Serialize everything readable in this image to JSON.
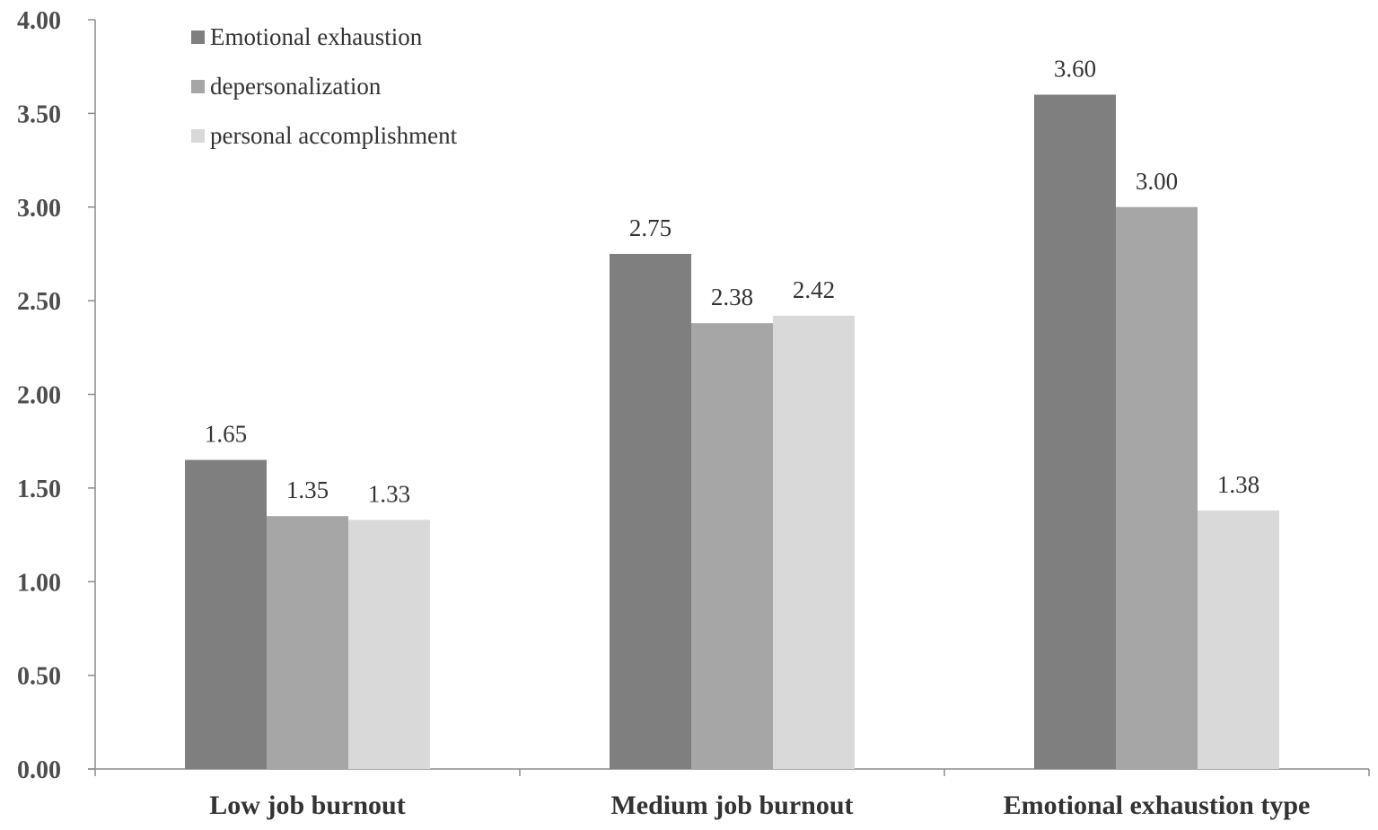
{
  "chart_data": {
    "type": "bar",
    "title": "",
    "xlabel": "",
    "ylabel": "",
    "ylim": [
      0,
      4
    ],
    "yticks": [
      "0.00",
      "0.50",
      "1.00",
      "1.50",
      "2.00",
      "2.50",
      "3.00",
      "3.50",
      "4.00"
    ],
    "categories": [
      "Low job burnout",
      "Medium job burnout",
      "Emotional exhaustion type"
    ],
    "series": [
      {
        "name": "Emotional exhaustion",
        "color": "#7f7f7f",
        "values": [
          1.65,
          2.75,
          3.6
        ],
        "labels": [
          "1.65",
          "2.75",
          "3.60"
        ]
      },
      {
        "name": "depersonalization",
        "color": "#a6a6a6",
        "values": [
          1.35,
          2.38,
          3.0
        ],
        "labels": [
          "1.35",
          "2.38",
          "3.00"
        ]
      },
      {
        "name": "personal accomplishment",
        "color": "#d9d9d9",
        "values": [
          1.33,
          2.42,
          1.38
        ],
        "labels": [
          "1.33",
          "2.42",
          "1.38"
        ]
      }
    ],
    "legend_position": "top-left",
    "grid": false
  }
}
